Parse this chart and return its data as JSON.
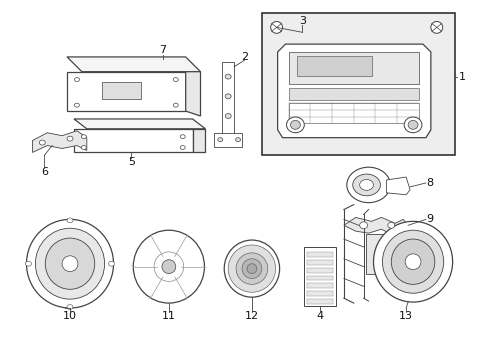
{
  "bg_color": "#ffffff",
  "line_color": "#444444",
  "figsize": [
    4.89,
    3.6
  ],
  "dpi": 100
}
